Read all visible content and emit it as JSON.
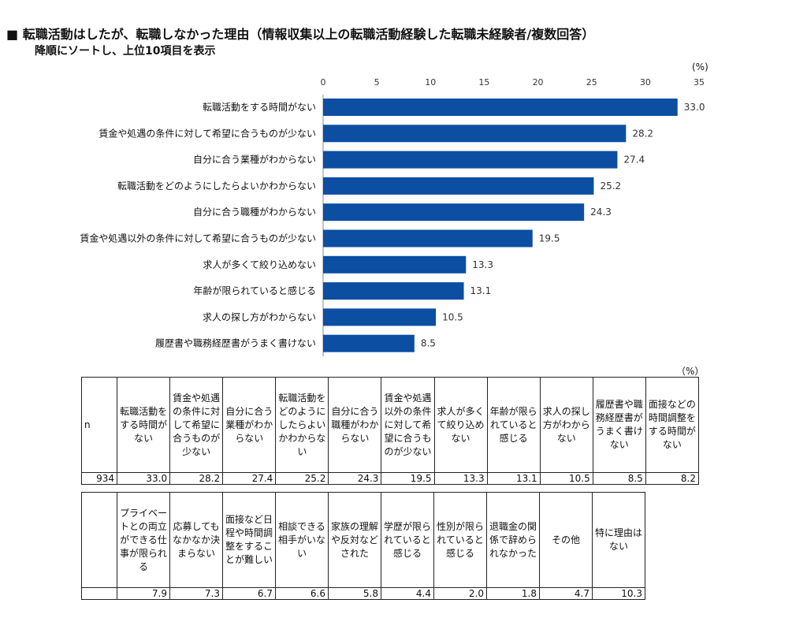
{
  "title": "■ 転職活動はしたが、転職しなかった理由（情報収集以上の転職活動経験した転職未経験者/複数回答）",
  "subtitle": "降順にソートし、上位10項目を表示",
  "chart_data": {
    "type": "bar",
    "orientation": "horizontal",
    "unit": "(%)",
    "xlim": [
      0,
      35
    ],
    "ticks": [
      0,
      5,
      10,
      15,
      20,
      25,
      30,
      35
    ],
    "categories": [
      "転職活動をする時間がない",
      "賃金や処遇の条件に対して希望に合うものが少ない",
      "自分に合う業種がわからない",
      "転職活動をどのようにしたらよいかわからない",
      "自分に合う職種がわからない",
      "賃金や処遇以外の条件に対して希望に合うものが少ない",
      "求人が多くて絞り込めない",
      "年齢が限られていると感じる",
      "求人の探し方がわからない",
      "履歴書や職務経歴書がうまく書けない"
    ],
    "values": [
      33.0,
      28.2,
      27.4,
      25.2,
      24.3,
      19.5,
      13.3,
      13.1,
      10.5,
      8.5
    ],
    "value_labels": [
      "33.0",
      "28.2",
      "27.4",
      "25.2",
      "24.3",
      "19.5",
      "13.3",
      "13.1",
      "10.5",
      "8.5"
    ],
    "bar_color": "#0b4ea2"
  },
  "table": {
    "unit": "（%）",
    "n_label": "n",
    "n_value": "934",
    "row1": [
      {
        "header": "転職活動をする時間がない",
        "value": "33.0"
      },
      {
        "header": "賃金や処遇の条件に対して希望に合うものが少ない",
        "value": "28.2"
      },
      {
        "header": "自分に合う業種がわからない",
        "value": "27.4"
      },
      {
        "header": "転職活動をどのようにしたらよいかわからない",
        "value": "25.2"
      },
      {
        "header": "自分に合う職種がわからない",
        "value": "24.3"
      },
      {
        "header": "賃金や処遇以外の条件に対して希望に合うものが少ない",
        "value": "19.5"
      },
      {
        "header": "求人が多くて絞り込めない",
        "value": "13.3"
      },
      {
        "header": "年齢が限られていると感じる",
        "value": "13.1"
      },
      {
        "header": "求人の探し方がわからない",
        "value": "10.5"
      },
      {
        "header": "履歴書や職務経歴書がうまく書けない",
        "value": "8.5"
      },
      {
        "header": "面接などの時間調整をする時間がない",
        "value": "8.2"
      }
    ],
    "row2": [
      {
        "header": "プライベートとの両立ができる仕事が限られる",
        "value": "7.9"
      },
      {
        "header": "応募してもなかなか決まらない",
        "value": "7.3"
      },
      {
        "header": "面接など日程や時間調整をすることが難しい",
        "value": "6.7"
      },
      {
        "header": "相談できる相手がいない",
        "value": "6.6"
      },
      {
        "header": "家族の理解や反対などされた",
        "value": "5.8"
      },
      {
        "header": "学歴が限られていると感じる",
        "value": "4.4"
      },
      {
        "header": "性別が限られていると感じる",
        "value": "2.0"
      },
      {
        "header": "退職金の関係で辞められなかった",
        "value": "1.8"
      },
      {
        "header": "その他",
        "value": "4.7"
      },
      {
        "header": "特に理由はない",
        "value": "10.3"
      }
    ]
  }
}
